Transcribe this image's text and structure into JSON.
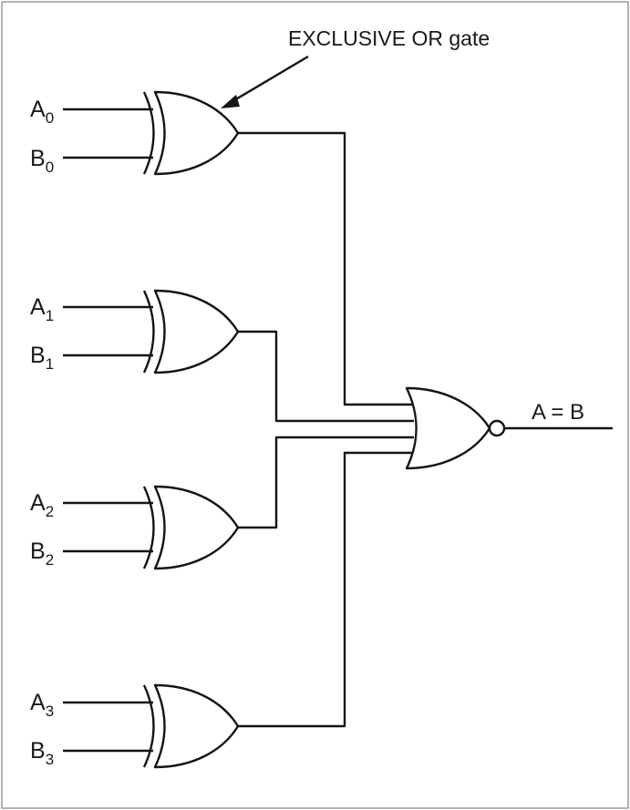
{
  "annotation": "EXCLUSIVE OR gate",
  "output_label": "A = B",
  "gates": [
    {
      "inputs": [
        {
          "letter": "A",
          "sub": "0"
        },
        {
          "letter": "B",
          "sub": "0"
        }
      ]
    },
    {
      "inputs": [
        {
          "letter": "A",
          "sub": "1"
        },
        {
          "letter": "B",
          "sub": "1"
        }
      ]
    },
    {
      "inputs": [
        {
          "letter": "A",
          "sub": "2"
        },
        {
          "letter": "B",
          "sub": "2"
        }
      ]
    },
    {
      "inputs": [
        {
          "letter": "A",
          "sub": "3"
        },
        {
          "letter": "B",
          "sub": "3"
        }
      ]
    }
  ],
  "gate_types": {
    "stage1": "XOR",
    "stage2": "NOR"
  },
  "colors": {
    "line": "#141414",
    "background": "#ffffff",
    "frame": "#9a9a9a"
  }
}
